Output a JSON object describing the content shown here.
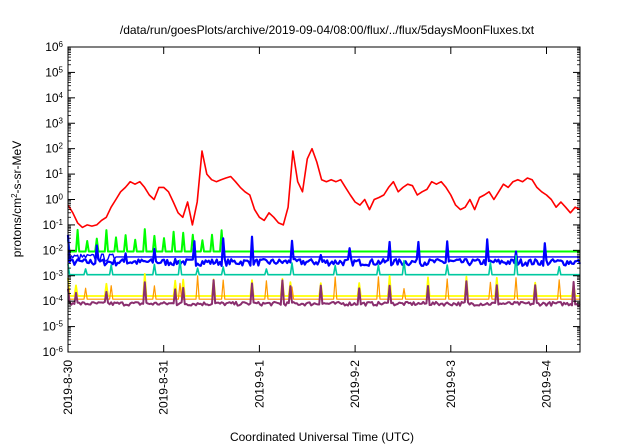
{
  "chart_data": {
    "type": "line",
    "title": "/data/run/goesPlots/archive/2019-09-04/08:00/flux/../flux/5daysMoonFluxes.txt",
    "xlabel": "Coordinated Universal Time (UTC)",
    "ylabel": {
      "prefix": "protons/cm",
      "sup": "2",
      "suffix": "-s-sr-MeV"
    },
    "x_unit": "days",
    "xlim": [
      0,
      5.35
    ],
    "x_ticks": [
      {
        "v": 0,
        "label": "2019-8-30"
      },
      {
        "v": 1,
        "label": "2019-8-31"
      },
      {
        "v": 2,
        "label": "2019-9-1"
      },
      {
        "v": 3,
        "label": "2019-9-2"
      },
      {
        "v": 4,
        "label": "2019-9-3"
      },
      {
        "v": 5,
        "label": "2019-9-4"
      }
    ],
    "y_scale": "log",
    "ylim": [
      1e-06,
      1000000.0
    ],
    "y_ticks": [
      {
        "v": -6,
        "base": "10",
        "exp": "-6"
      },
      {
        "v": -5,
        "base": "10",
        "exp": "-5"
      },
      {
        "v": -4,
        "base": "10",
        "exp": "-4"
      },
      {
        "v": -3,
        "base": "10",
        "exp": "-3"
      },
      {
        "v": -2,
        "base": "10",
        "exp": "-2"
      },
      {
        "v": -1,
        "base": "10",
        "exp": "-1"
      },
      {
        "v": 0,
        "base": "10",
        "exp": "0"
      },
      {
        "v": 1,
        "base": "10",
        "exp": "1"
      },
      {
        "v": 2,
        "base": "10",
        "exp": "2"
      },
      {
        "v": 3,
        "base": "10",
        "exp": "3"
      },
      {
        "v": 4,
        "base": "10",
        "exp": "4"
      },
      {
        "v": 5,
        "base": "10",
        "exp": "5"
      },
      {
        "v": 6,
        "base": "10",
        "exp": "6"
      }
    ],
    "grid": false,
    "legend": "none",
    "series": [
      {
        "color": "#ff0000",
        "x": [
          0,
          0.05,
          0.1,
          0.15,
          0.2,
          0.25,
          0.3,
          0.35,
          0.4,
          0.45,
          0.5,
          0.55,
          0.6,
          0.65,
          0.7,
          0.75,
          0.8,
          0.85,
          0.9,
          0.95,
          1.0,
          1.05,
          1.1,
          1.15,
          1.2,
          1.25,
          1.3,
          1.35,
          1.4,
          1.45,
          1.5,
          1.55,
          1.6,
          1.65,
          1.7,
          1.75,
          1.8,
          1.85,
          1.9,
          1.95,
          2.0,
          2.05,
          2.1,
          2.15,
          2.2,
          2.25,
          2.3,
          2.35,
          2.4,
          2.45,
          2.5,
          2.55,
          2.6,
          2.65,
          2.7,
          2.75,
          2.8,
          2.85,
          2.9,
          2.95,
          3.0,
          3.05,
          3.1,
          3.15,
          3.2,
          3.25,
          3.3,
          3.35,
          3.4,
          3.45,
          3.5,
          3.55,
          3.6,
          3.65,
          3.7,
          3.75,
          3.8,
          3.85,
          3.9,
          3.95,
          4.0,
          4.05,
          4.1,
          4.15,
          4.2,
          4.25,
          4.3,
          4.35,
          4.4,
          4.45,
          4.5,
          4.55,
          4.6,
          4.65,
          4.7,
          4.75,
          4.8,
          4.85,
          4.9,
          4.95,
          5.0,
          5.05,
          5.1,
          5.15,
          5.2,
          5.25,
          5.3,
          5.35
        ],
        "y": [
          0.6,
          0.3,
          0.12,
          0.08,
          0.1,
          0.09,
          0.1,
          0.15,
          0.2,
          0.5,
          1.0,
          2.0,
          3.0,
          5.0,
          4.0,
          5.0,
          3.0,
          1.5,
          1.0,
          3.0,
          3.0,
          2.0,
          0.8,
          0.3,
          0.2,
          0.8,
          0.1,
          0.8,
          80.0,
          10.0,
          6.0,
          5.0,
          6.0,
          7.0,
          8.0,
          5.0,
          3.0,
          2.0,
          1.5,
          0.4,
          0.2,
          0.15,
          0.3,
          0.2,
          0.12,
          0.1,
          0.5,
          80.0,
          5.0,
          2.0,
          40.0,
          100.0,
          30.0,
          6.0,
          5.0,
          6.0,
          5.0,
          6.0,
          3.0,
          1.5,
          0.8,
          0.6,
          1.0,
          0.4,
          1.0,
          1.2,
          1.5,
          3.0,
          5.0,
          2.0,
          3.0,
          4.0,
          3.5,
          1.5,
          2.0,
          2.5,
          5.0,
          4.0,
          5.0,
          3.0,
          1.5,
          0.6,
          0.4,
          0.5,
          1.0,
          0.4,
          1.2,
          1.5,
          2.0,
          1.0,
          2.0,
          4.0,
          3.0,
          5.0,
          6.0,
          5.0,
          7.0,
          6.0,
          3.0,
          2.0,
          1.5,
          1.0,
          0.5,
          0.8,
          0.5,
          0.3,
          0.5,
          0.4
        ]
      },
      {
        "color": "#00ff00",
        "baseline": 0.009,
        "spikes": [
          0.045,
          0.055,
          0.03,
          0.04,
          0.06,
          0.035,
          0.05,
          0.025,
          0.065,
          0.04,
          0.03,
          0.055
        ],
        "period": 0.1,
        "width": 2.0
      },
      {
        "color": "#0000ff",
        "baseline": 0.0035,
        "spikes": [
          0.04,
          0.02,
          0.009,
          0.015,
          0.03,
          0.007,
          0.012,
          0.025,
          0.008,
          0.02
        ],
        "period": 0.06,
        "width": 2.2,
        "noise": 0.6
      },
      {
        "color": "#0000ff",
        "baseline": 0.0055,
        "spikes": [
          0.006
        ],
        "period": 10,
        "width": 1.4
      },
      {
        "color": "#00c8a0",
        "baseline": 0.0011,
        "spikes": [
          0.004,
          0.003,
          0.006,
          0.0025,
          0.005,
          0.004
        ],
        "period": 0.09,
        "width": 1.6
      },
      {
        "color": "#ffff00",
        "baseline": 0.00016,
        "spikes": [
          0.0008,
          0.0005,
          0.001,
          0.0006,
          0.0007
        ],
        "period": 0.08,
        "width": 1.8
      },
      {
        "color": "#ff9900",
        "baseline": 0.00012,
        "spikes": [
          0.0008,
          0.0005,
          0.0007,
          0.001,
          0.0006
        ],
        "period": 0.09,
        "width": 1.2
      },
      {
        "color": "#8a2e6e",
        "baseline": 8e-05,
        "spikes": [
          0.0005,
          0.0003,
          0.0006,
          0.0004,
          0.0007
        ],
        "period": 0.08,
        "width": 2.0,
        "noise": 0.35
      }
    ]
  }
}
